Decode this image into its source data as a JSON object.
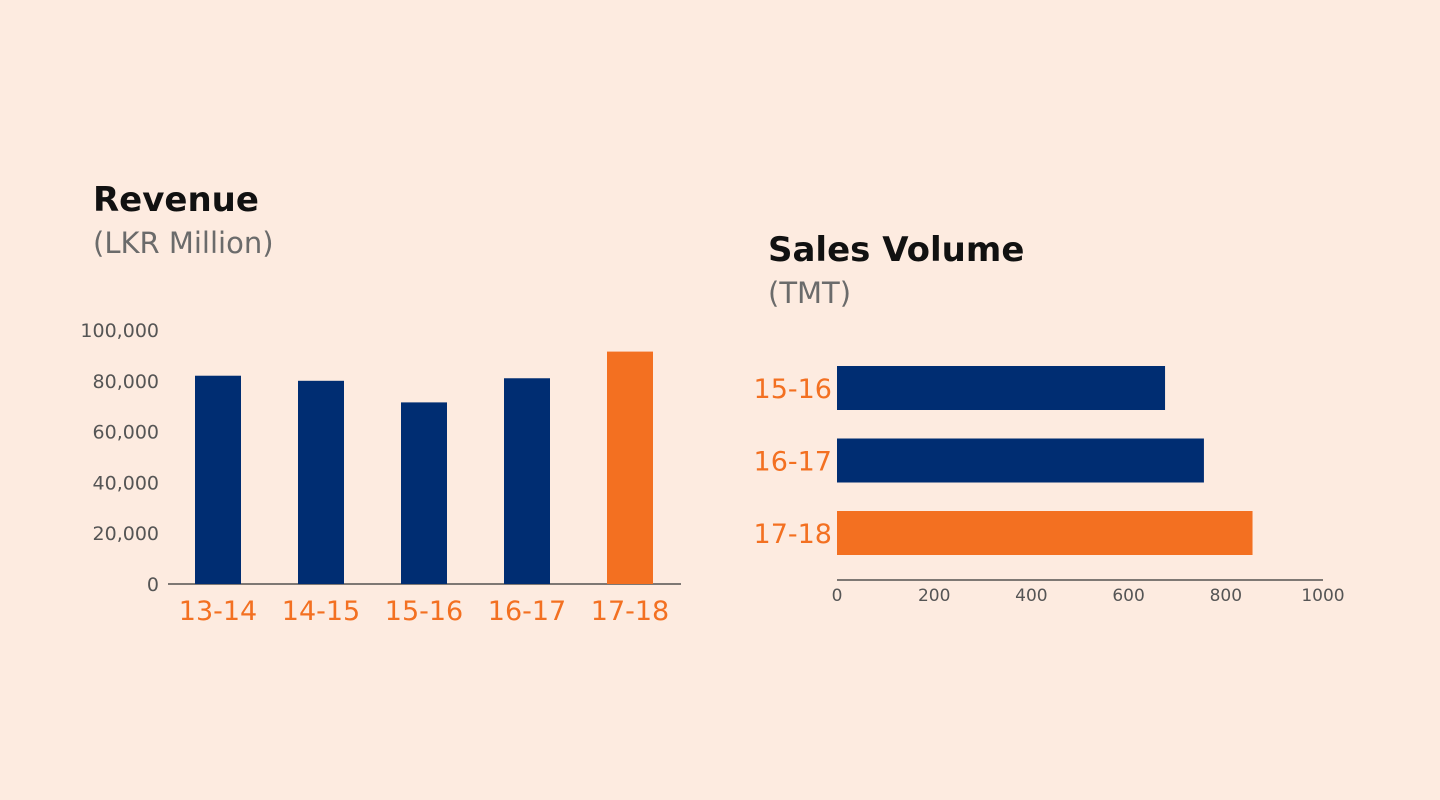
{
  "colors": {
    "background": "#fdebe0",
    "navy": "#002d72",
    "orange": "#f37021",
    "axis_text": "#555555",
    "subtitle_text": "#6b6b6b"
  },
  "chart_data": [
    {
      "type": "bar",
      "orientation": "vertical",
      "title": "Revenue",
      "subtitle": "(LKR Million)",
      "categories": [
        "13-14",
        "14-15",
        "15-16",
        "16-17",
        "17-18"
      ],
      "values": [
        82000,
        80000,
        71500,
        81000,
        91500
      ],
      "highlight_index": 4,
      "ylim": [
        0,
        100000
      ],
      "yticks": [
        0,
        20000,
        40000,
        60000,
        80000,
        100000
      ],
      "ytick_labels": [
        "0",
        "20,000",
        "40,000",
        "60,000",
        "80,000",
        "100,000"
      ],
      "grid": false,
      "legend": "none"
    },
    {
      "type": "bar",
      "orientation": "horizontal",
      "title": "Sales Volume",
      "subtitle": "(TMT)",
      "categories": [
        "15-16",
        "16-17",
        "17-18"
      ],
      "values": [
        675,
        755,
        855
      ],
      "highlight_index": 2,
      "xlim": [
        0,
        1000
      ],
      "xticks": [
        0,
        200,
        400,
        600,
        800,
        1000
      ],
      "xtick_labels": [
        "0",
        "200",
        "400",
        "600",
        "800",
        "1000"
      ],
      "grid": false,
      "legend": "none"
    }
  ]
}
